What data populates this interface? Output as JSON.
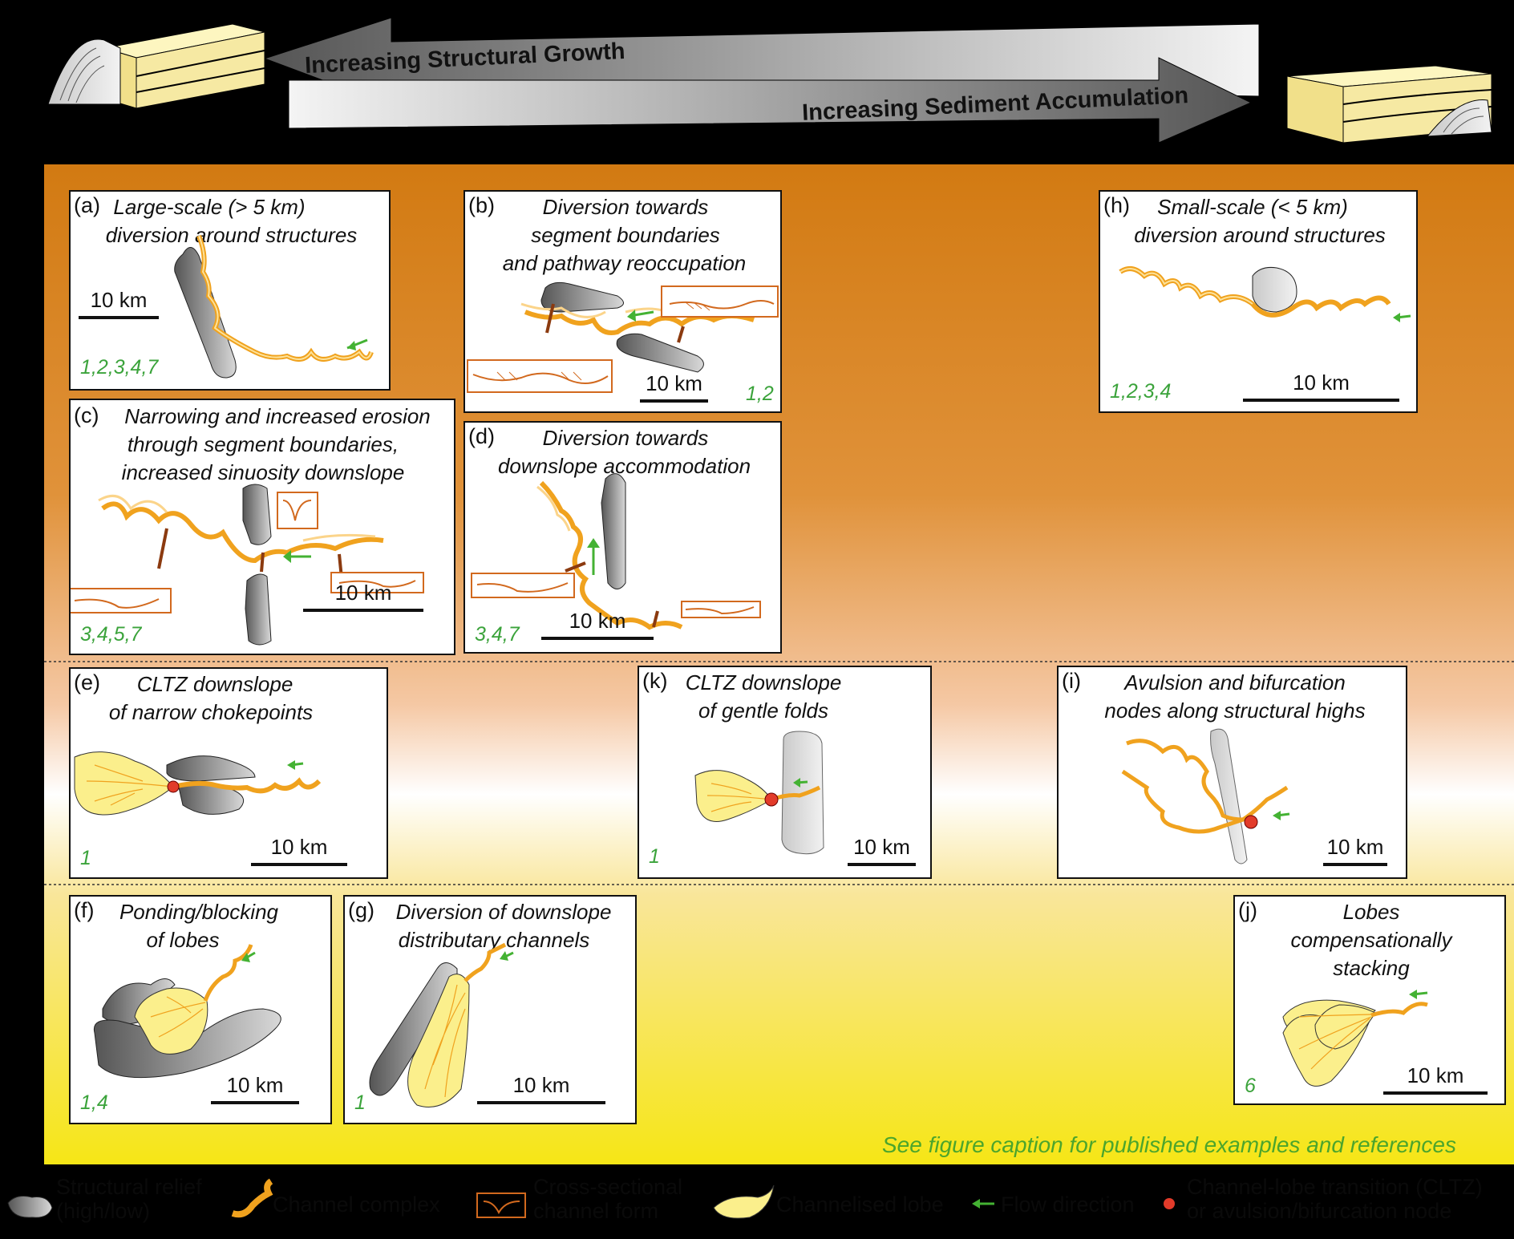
{
  "header": {
    "left_arrow_label": "Increasing Structural Growth",
    "right_arrow_label": "Increasing Sediment Accumulation"
  },
  "panels": {
    "a": {
      "label": "(a)",
      "title1": "Large-scale (> 5 km)",
      "title2": "diversion around structures",
      "scale": "10 km",
      "refs": "1,2,3,4,7"
    },
    "b": {
      "label": "(b)",
      "title1": "Diversion towards",
      "title2": "segment boundaries",
      "title3": "and pathway reoccupation",
      "scale": "10 km",
      "refs": "1,2"
    },
    "c": {
      "label": "(c)",
      "title1": "Narrowing and increased erosion",
      "title2": "through segment boundaries,",
      "title3": "increased sinuosity downslope",
      "scale": "10 km",
      "refs": "3,4,5,7"
    },
    "d": {
      "label": "(d)",
      "title1": "Diversion towards",
      "title2": "downslope accommodation",
      "scale": "10 km",
      "refs": "3,4,7"
    },
    "e": {
      "label": "(e)",
      "title1": "CLTZ downslope",
      "title2": "of narrow chokepoints",
      "scale": "10 km",
      "refs": "1"
    },
    "f": {
      "label": "(f)",
      "title1": "Ponding/blocking",
      "title2": "of lobes",
      "scale": "10 km",
      "refs": "1,4"
    },
    "g": {
      "label": "(g)",
      "title1": "Diversion of downslope",
      "title2": "distributary channels",
      "scale": "10 km",
      "refs": "1"
    },
    "h": {
      "label": "(h)",
      "title1": "Small-scale (< 5 km)",
      "title2": "diversion around structures",
      "scale": "10 km",
      "refs": "1,2,3,4"
    },
    "i": {
      "label": "(i)",
      "title1": "Avulsion and bifurcation",
      "title2": "nodes along structural highs",
      "scale": "10 km",
      "refs": ""
    },
    "j": {
      "label": "(j)",
      "title1": "Lobes",
      "title2": "compensationally",
      "title3": "stacking",
      "scale": "10 km",
      "refs": "6"
    },
    "k": {
      "label": "(k)",
      "title1": "CLTZ downslope",
      "title2": "of gentle folds",
      "scale": "10 km",
      "refs": "1"
    }
  },
  "note": "See figure caption for published examples and references",
  "legend": {
    "structural_relief": "Structural relief (high/low)",
    "channel_complex": "Channel complex",
    "cross_section": "Cross-sectional channel form",
    "lobe": "Channelised lobe",
    "flow": "Flow direction",
    "cltz": "Channel-lobe transition (CLTZ) or avulsion/bifurcation node"
  },
  "colors": {
    "orange_top": "#d27a12",
    "peach": "#f3c7a3",
    "yellow_bottom": "#f5e71b",
    "channel": "#f0a21e",
    "structure": "#888888",
    "lobe_fill": "#fbef8c",
    "flow_arrow": "#44b233",
    "node": "#e23b2a",
    "section": "#d2691e"
  }
}
